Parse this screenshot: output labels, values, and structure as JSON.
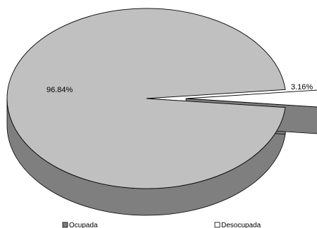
{
  "chart_data": {
    "type": "pie",
    "title": "",
    "style": "3d-exploded",
    "categories": [
      "Ocupada",
      "Desocupada"
    ],
    "values": [
      96.84,
      3.16
    ],
    "labels": [
      "96.84%",
      "3.16%"
    ],
    "colors": {
      "Ocupada": "#c0c0c0",
      "Desocupada": "#ffffff",
      "side_Ocupada": "#7f7f7f",
      "side_Desocupada": "#7f7f7f"
    },
    "legend": {
      "position": "bottom",
      "entries": [
        "Ocupada",
        "Desocupada"
      ]
    }
  }
}
